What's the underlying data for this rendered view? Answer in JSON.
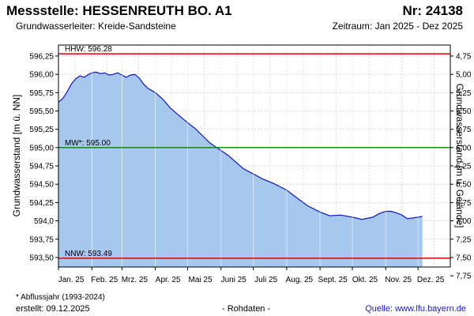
{
  "header": {
    "title_left": "Messstelle: HESSENREUTH BO. A1",
    "title_right": "Nr: 24138",
    "subtitle_left": "Grundwasserleiter:  Kreide-Sandsteine",
    "subtitle_right": "Zeitraum: Jan 2025 - Dez 2025"
  },
  "footer": {
    "footnote": "* Abflussjahr (1993-2024)",
    "created": "erstellt:  09.12.2025",
    "rawdata": "- Rohdaten -",
    "source_label": "Quelle: ",
    "source_link": "www.lfu.bayern.de"
  },
  "colors": {
    "area_fill": "#a6c8ef",
    "line": "#1515c8",
    "hhw": "#e00000",
    "mw": "#008800",
    "nnw": "#e00000",
    "grid": "#cccccc"
  },
  "chart_data": {
    "type": "area",
    "ylabel": "Grundwasserstand [m ü. NN]",
    "ylabel_right": "Grundwasserstand [m u. Gelände]",
    "ylim": [
      593.37,
      596.4
    ],
    "y_ticks": [
      "596,25",
      "596,00",
      "595,75",
      "595,50",
      "595,25",
      "595,00",
      "594,75",
      "594,50",
      "594,25",
      "594,0",
      "593,75",
      "593,50"
    ],
    "y_tick_values": [
      596.25,
      596.0,
      595.75,
      595.5,
      595.25,
      595.0,
      594.75,
      594.5,
      594.25,
      594.0,
      593.75,
      593.5
    ],
    "y2_ticks": [
      "4,75",
      "5,00",
      "5,25",
      "5,50",
      "5,75",
      "6,00",
      "6,25",
      "6,50",
      "6,75",
      "7,00",
      "7,25",
      "7,50",
      "7,75"
    ],
    "y2_tick_values": [
      4.75,
      5.0,
      5.25,
      5.5,
      5.75,
      6.0,
      6.25,
      6.5,
      6.75,
      7.0,
      7.25,
      7.5,
      7.75
    ],
    "ground_level": 601.0,
    "x_ticks": [
      "Jan. 25",
      "Feb. 25",
      "Mrz. 25",
      "Apr. 25",
      "Mai 25",
      "Juni 25",
      "Juli 25",
      "Aug. 25",
      "Sept. 25",
      "Okt. 25",
      "Nov. 25",
      "Dez. 25"
    ],
    "x_tick_dates": [
      "2025-01-01",
      "2025-02-01",
      "2025-03-01",
      "2025-04-01",
      "2025-05-01",
      "2025-06-01",
      "2025-07-01",
      "2025-08-01",
      "2025-09-01",
      "2025-10-01",
      "2025-11-01",
      "2025-12-01"
    ],
    "xlim": [
      "2025-01-01",
      "2025-12-31"
    ],
    "reference_lines": [
      {
        "label": "HHW: 596.28",
        "value": 596.28,
        "color": "#e00000"
      },
      {
        "label": "MW*: 595.00",
        "value": 595.0,
        "color": "#008800"
      },
      {
        "label": "NNW: 593.49",
        "value": 593.49,
        "color": "#e00000"
      }
    ],
    "x": [
      "2025-01-01",
      "2025-01-05",
      "2025-01-09",
      "2025-01-13",
      "2025-01-17",
      "2025-01-21",
      "2025-01-25",
      "2025-01-29",
      "2025-02-01",
      "2025-02-05",
      "2025-02-09",
      "2025-02-13",
      "2025-02-17",
      "2025-02-21",
      "2025-02-25",
      "2025-03-01",
      "2025-03-05",
      "2025-03-09",
      "2025-03-13",
      "2025-03-17",
      "2025-03-21",
      "2025-03-25",
      "2025-04-01",
      "2025-04-08",
      "2025-04-15",
      "2025-04-22",
      "2025-05-01",
      "2025-05-08",
      "2025-05-15",
      "2025-05-22",
      "2025-06-01",
      "2025-06-08",
      "2025-06-15",
      "2025-06-22",
      "2025-07-01",
      "2025-07-10",
      "2025-07-20",
      "2025-08-01",
      "2025-08-10",
      "2025-08-20",
      "2025-09-01",
      "2025-09-10",
      "2025-09-20",
      "2025-10-01",
      "2025-10-10",
      "2025-10-20",
      "2025-10-26",
      "2025-11-01",
      "2025-11-06",
      "2025-11-11",
      "2025-11-16",
      "2025-11-21",
      "2025-11-26",
      "2025-12-01",
      "2025-12-05"
    ],
    "values": [
      595.62,
      595.67,
      595.76,
      595.87,
      595.94,
      595.98,
      595.96,
      596.0,
      596.02,
      596.03,
      596.01,
      596.02,
      595.99,
      596.0,
      596.02,
      595.99,
      595.96,
      595.99,
      596.0,
      595.95,
      595.87,
      595.81,
      595.75,
      595.66,
      595.54,
      595.45,
      595.34,
      595.26,
      595.16,
      595.06,
      594.96,
      594.89,
      594.8,
      594.71,
      594.64,
      594.57,
      594.51,
      594.42,
      594.32,
      594.21,
      594.12,
      594.07,
      594.08,
      594.05,
      594.02,
      594.05,
      594.1,
      594.13,
      594.13,
      594.11,
      594.08,
      594.03,
      594.04,
      594.05,
      594.06
    ]
  }
}
